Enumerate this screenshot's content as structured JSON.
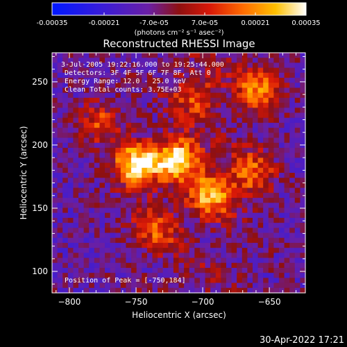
{
  "colorbar": {
    "tick_labels": [
      "-0.00035",
      "-0.00021",
      "-7.0e-05",
      "7.0e-05",
      "0.00021",
      "0.00035"
    ],
    "unit_label": "(photons cm⁻² s⁻¹ asec⁻²)",
    "range": [
      -0.00035,
      0.00035
    ]
  },
  "chart_data": {
    "type": "heatmap",
    "title": "Reconstructed RHESSI Image",
    "xlabel": "Heliocentric X (arcsec)",
    "ylabel": "Heliocentric Y (arcsec)",
    "xlim": [
      -813,
      -623
    ],
    "ylim": [
      83,
      273
    ],
    "xticks": [
      -800,
      -750,
      -700,
      -650
    ],
    "yticks": [
      100,
      150,
      200,
      250
    ],
    "x_tick_labels": [
      "−800",
      "−750",
      "−700",
      "−650"
    ],
    "y_tick_labels": [
      "100",
      "150",
      "200",
      "250"
    ],
    "colormap": "blue-purple-red-yellow-white",
    "bright_sources": [
      {
        "x": -750,
        "y": 184,
        "intensity": 1.0
      },
      {
        "x": -718,
        "y": 190,
        "intensity": 0.85
      },
      {
        "x": -693,
        "y": 161,
        "intensity": 0.7
      },
      {
        "x": -657,
        "y": 244,
        "intensity": 0.65
      },
      {
        "x": -663,
        "y": 178,
        "intensity": 0.55
      },
      {
        "x": -778,
        "y": 218,
        "intensity": 0.45
      },
      {
        "x": -735,
        "y": 135,
        "intensity": 0.45
      },
      {
        "x": -705,
        "y": 240,
        "intensity": 0.4
      }
    ],
    "annotations": [
      "3-Jul-2005 19:22:16.000 to 19:25:44.000",
      "Detectors: 3F 4F 5F 6F 7F 8F, Att 0",
      "Energy Range: 12.0 - 25.0 keV",
      "Clean     Total counts: 3.75E+03"
    ],
    "peak_label": "Position of Peak = [-750,184]"
  },
  "footer": {
    "timestamp": "30-Apr-2022 17:21"
  },
  "colors": {
    "background": "#000000",
    "axis": "#ffffff"
  }
}
